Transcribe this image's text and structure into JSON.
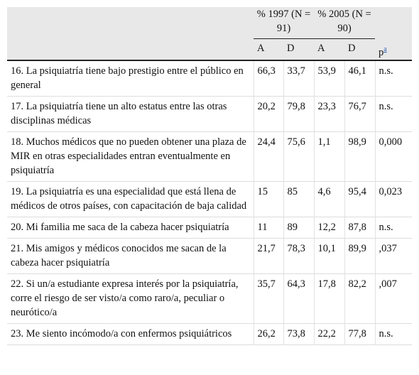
{
  "header": {
    "group_1997": "% 1997 (N = 91)",
    "group_2005": "% 2005 (N = 90)",
    "columns": [
      "A",
      "D",
      "A",
      "D",
      "p"
    ],
    "note_ref": "a"
  },
  "rows": [
    {
      "label": "16. La psiquiatría tiene bajo prestigio entre el público en general",
      "cells": [
        "66,3",
        "33,7",
        "53,9",
        "46,1",
        "n.s."
      ]
    },
    {
      "label": "17. La psiquiatría tiene un alto estatus entre las otras disciplinas médicas",
      "cells": [
        "20,2",
        "79,8",
        "23,3",
        "76,7",
        "n.s."
      ]
    },
    {
      "label": "18. Muchos médicos que no pueden obtener una plaza de MIR en otras especialidades entran eventualmente en psiquiatría",
      "cells": [
        "24,4",
        "75,6",
        "1,1",
        "98,9",
        "0,000"
      ]
    },
    {
      "label": "19. La psiquiatría es una especialidad que está llena de médicos de otros países, con capacitación de baja calidad",
      "cells": [
        "15",
        "85",
        "4,6",
        "95,4",
        "0,023"
      ]
    },
    {
      "label": "20. Mi familia me saca de la cabeza hacer psiquiatría",
      "cells": [
        "11",
        "89",
        "12,2",
        "87,8",
        "n.s."
      ]
    },
    {
      "label": "21. Mis amigos y médicos conocidos me sacan de la cabeza hacer psiquiatría",
      "cells": [
        "21,7",
        "78,3",
        "10,1",
        "89,9",
        ",037"
      ]
    },
    {
      "label": "22. Si un/a estudiante expresa interés por la psiquiatría, corre el riesgo de ser visto/a como raro/a, peculiar o neurótico/a",
      "cells": [
        "35,7",
        "64,3",
        "17,8",
        "82,2",
        ",007"
      ]
    },
    {
      "label": "23. Me siento incómodo/a con enfermos psiquiátricos",
      "cells": [
        "26,2",
        "73,8",
        "22,2",
        "77,8",
        "n.s."
      ]
    }
  ]
}
